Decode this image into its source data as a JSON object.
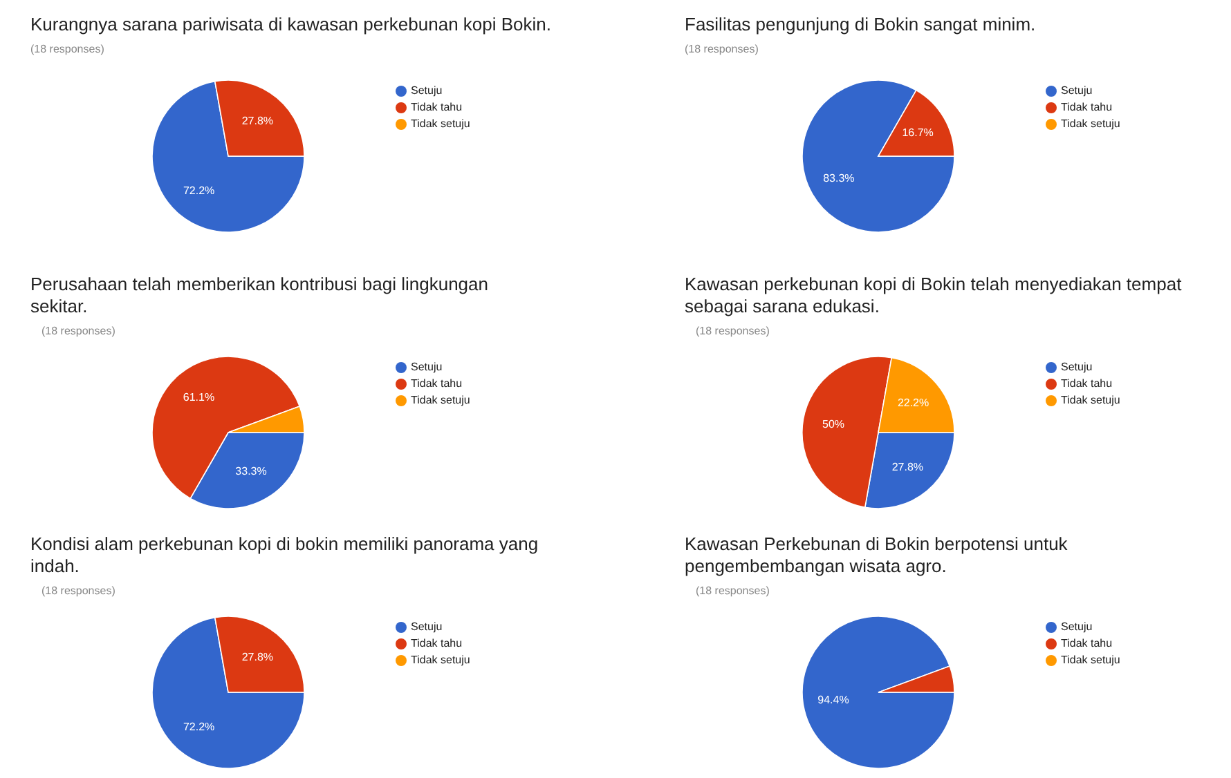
{
  "chart_data": [
    {
      "type": "pie",
      "title": "Kurangnya sarana pariwisata di kawasan perkebunan kopi Bokin.",
      "subtitle": "(18 responses)",
      "categories": [
        "Setuju",
        "Tidak tahu",
        "Tidak setuju"
      ],
      "values": [
        72.2,
        27.8,
        0
      ],
      "colors": [
        "#3366cc",
        "#dc3912",
        "#ff9900"
      ],
      "value_labels": [
        "72.2%",
        "27.8%",
        null
      ],
      "legend": "right"
    },
    {
      "type": "pie",
      "title": "Fasilitas pengunjung di Bokin sangat minim.",
      "subtitle": "(18 responses)",
      "categories": [
        "Setuju",
        "Tidak tahu",
        "Tidak setuju"
      ],
      "values": [
        83.3,
        16.7,
        0
      ],
      "colors": [
        "#3366cc",
        "#dc3912",
        "#ff9900"
      ],
      "value_labels": [
        "83.3%",
        "16.7%",
        null
      ],
      "legend": "right"
    },
    {
      "type": "pie",
      "title": "Perusahaan telah memberikan kontribusi bagi lingkungan sekitar.",
      "subtitle": "(18 responses)",
      "categories": [
        "Setuju",
        "Tidak tahu",
        "Tidak setuju"
      ],
      "values": [
        33.3,
        61.1,
        5.6
      ],
      "colors": [
        "#3366cc",
        "#dc3912",
        "#ff9900"
      ],
      "value_labels": [
        "33.3%",
        "61.1%",
        null
      ],
      "legend": "right"
    },
    {
      "type": "pie",
      "title": "Kawasan perkebunan kopi di Bokin telah menyediakan tempat sebagai sarana edukasi.",
      "subtitle": "(18 responses)",
      "categories": [
        "Setuju",
        "Tidak tahu",
        "Tidak setuju"
      ],
      "values": [
        27.8,
        50,
        22.2
      ],
      "colors": [
        "#3366cc",
        "#dc3912",
        "#ff9900"
      ],
      "value_labels": [
        "27.8%",
        "50%",
        "22.2%"
      ],
      "legend": "right"
    },
    {
      "type": "pie",
      "title": "Kondisi alam perkebunan kopi di bokin memiliki panorama yang indah.",
      "subtitle": "(18 responses)",
      "categories": [
        "Setuju",
        "Tidak tahu",
        "Tidak setuju"
      ],
      "values": [
        72.2,
        27.8,
        0
      ],
      "colors": [
        "#3366cc",
        "#dc3912",
        "#ff9900"
      ],
      "value_labels": [
        "72.2%",
        "27.8%",
        null
      ],
      "legend": "right"
    },
    {
      "type": "pie",
      "title": "Kawasan Perkebunan di Bokin berpotensi untuk pengembembangan wisata agro.",
      "subtitle": "(18 responses)",
      "categories": [
        "Setuju",
        "Tidak tahu",
        "Tidak setuju"
      ],
      "values": [
        94.4,
        5.6,
        0
      ],
      "colors": [
        "#3366cc",
        "#dc3912",
        "#ff9900"
      ],
      "value_labels": [
        "94.4%",
        null,
        null
      ],
      "legend": "right"
    }
  ]
}
